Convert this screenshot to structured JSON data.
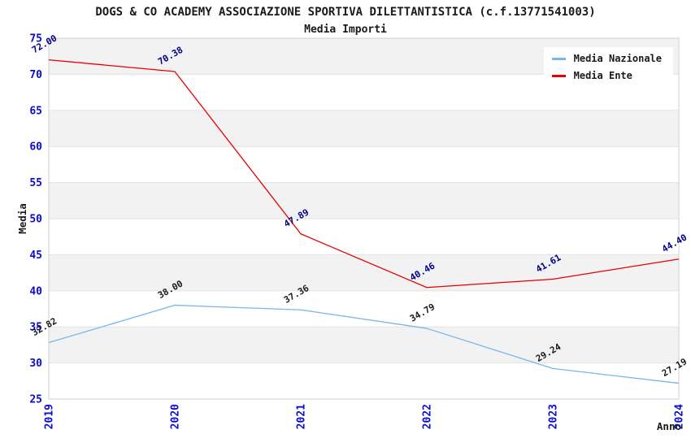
{
  "title": "DOGS & CO ACADEMY ASSOCIAZIONE SPORTIVA DILETTANTISTICA (c.f.13771541003)",
  "subtitle": "Media Importi",
  "chart_data": {
    "type": "line",
    "x": [
      "2019",
      "2020",
      "2021",
      "2022",
      "2023",
      "2024"
    ],
    "series": [
      {
        "name": "Media Nazionale",
        "color": "#79b4ea",
        "label_color": "#1a1a1a",
        "values": [
          32.82,
          38.0,
          37.36,
          34.79,
          29.24,
          27.19
        ]
      },
      {
        "name": "Media Ente",
        "color": "#e60000",
        "label_color": "#00008b",
        "values": [
          72.0,
          70.38,
          47.89,
          40.46,
          41.61,
          44.4
        ]
      }
    ],
    "title": "Media Importi",
    "xlabel": "Anno",
    "ylabel": "Media",
    "ylim": [
      25,
      75
    ],
    "ytick_step": 5,
    "yticks": [
      25,
      30,
      35,
      40,
      45,
      50,
      55,
      60,
      65,
      70,
      75
    ],
    "grid": "horizontal-bands",
    "legend_position": "top-right",
    "annotation_decimals": 2
  },
  "colors": {
    "tick_label": "#0b0bd1",
    "band_gray": "#f2f2f2",
    "grid_line": "#e2e2e2",
    "plot_border": "#cfcfcf",
    "axis_text": "#1a1a1a",
    "background": "#ffffff"
  }
}
